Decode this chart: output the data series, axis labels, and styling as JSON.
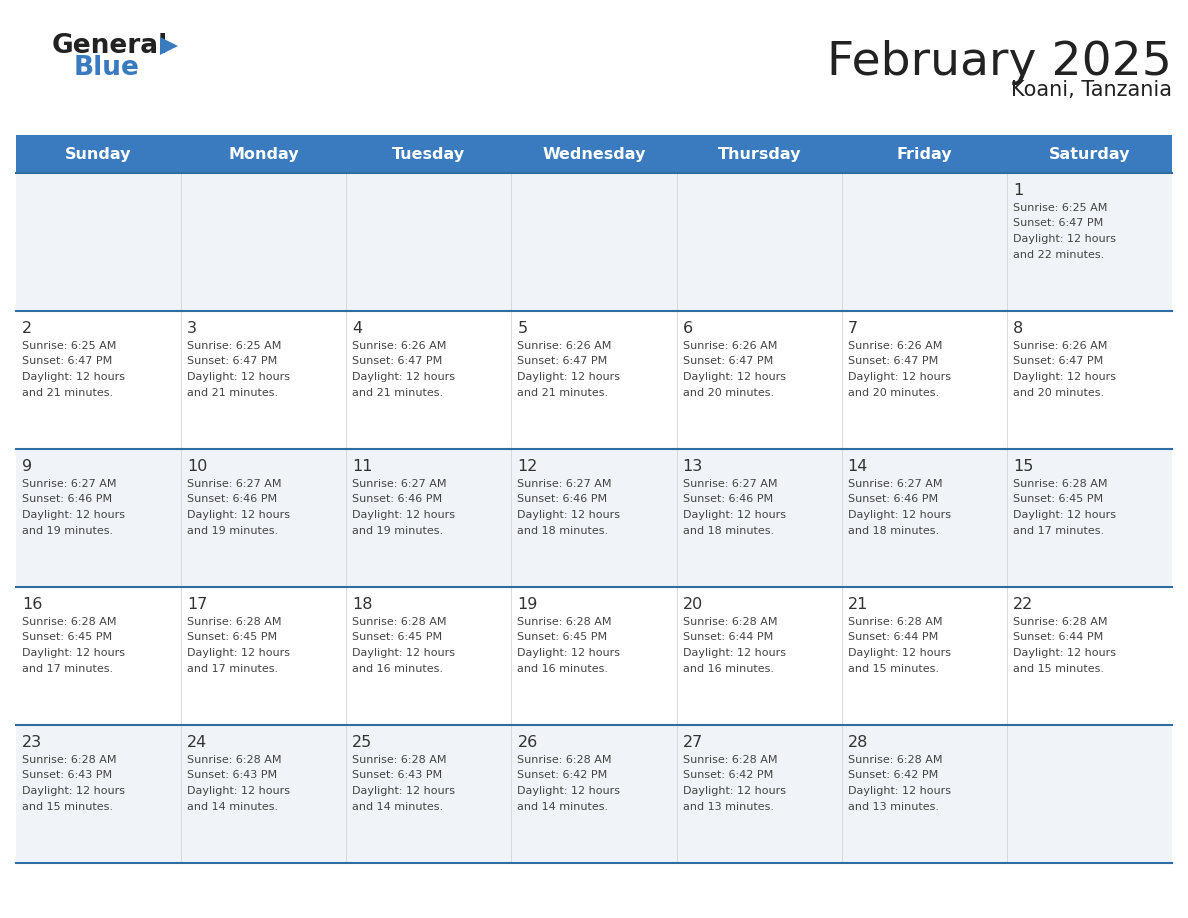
{
  "title": "February 2025",
  "subtitle": "Koani, Tanzania",
  "header_bg": "#3a7bbf",
  "header_text_color": "#ffffff",
  "day_headers": [
    "Sunday",
    "Monday",
    "Tuesday",
    "Wednesday",
    "Thursday",
    "Friday",
    "Saturday"
  ],
  "bg_color": "#ffffff",
  "cell_bg_odd": "#f0f4f8",
  "cell_bg_even": "#ffffff",
  "border_color": "#2e6da4",
  "text_color": "#333333",
  "title_color": "#222222",
  "calendar": [
    [
      null,
      null,
      null,
      null,
      null,
      null,
      {
        "day": 1,
        "sunrise": "6:25 AM",
        "sunset": "6:47 PM",
        "daylight": "12 hours and 22 minutes."
      }
    ],
    [
      {
        "day": 2,
        "sunrise": "6:25 AM",
        "sunset": "6:47 PM",
        "daylight": "12 hours and 21 minutes."
      },
      {
        "day": 3,
        "sunrise": "6:25 AM",
        "sunset": "6:47 PM",
        "daylight": "12 hours and 21 minutes."
      },
      {
        "day": 4,
        "sunrise": "6:26 AM",
        "sunset": "6:47 PM",
        "daylight": "12 hours and 21 minutes."
      },
      {
        "day": 5,
        "sunrise": "6:26 AM",
        "sunset": "6:47 PM",
        "daylight": "12 hours and 21 minutes."
      },
      {
        "day": 6,
        "sunrise": "6:26 AM",
        "sunset": "6:47 PM",
        "daylight": "12 hours and 20 minutes."
      },
      {
        "day": 7,
        "sunrise": "6:26 AM",
        "sunset": "6:47 PM",
        "daylight": "12 hours and 20 minutes."
      },
      {
        "day": 8,
        "sunrise": "6:26 AM",
        "sunset": "6:47 PM",
        "daylight": "12 hours and 20 minutes."
      }
    ],
    [
      {
        "day": 9,
        "sunrise": "6:27 AM",
        "sunset": "6:46 PM",
        "daylight": "12 hours and 19 minutes."
      },
      {
        "day": 10,
        "sunrise": "6:27 AM",
        "sunset": "6:46 PM",
        "daylight": "12 hours and 19 minutes."
      },
      {
        "day": 11,
        "sunrise": "6:27 AM",
        "sunset": "6:46 PM",
        "daylight": "12 hours and 19 minutes."
      },
      {
        "day": 12,
        "sunrise": "6:27 AM",
        "sunset": "6:46 PM",
        "daylight": "12 hours and 18 minutes."
      },
      {
        "day": 13,
        "sunrise": "6:27 AM",
        "sunset": "6:46 PM",
        "daylight": "12 hours and 18 minutes."
      },
      {
        "day": 14,
        "sunrise": "6:27 AM",
        "sunset": "6:46 PM",
        "daylight": "12 hours and 18 minutes."
      },
      {
        "day": 15,
        "sunrise": "6:28 AM",
        "sunset": "6:45 PM",
        "daylight": "12 hours and 17 minutes."
      }
    ],
    [
      {
        "day": 16,
        "sunrise": "6:28 AM",
        "sunset": "6:45 PM",
        "daylight": "12 hours and 17 minutes."
      },
      {
        "day": 17,
        "sunrise": "6:28 AM",
        "sunset": "6:45 PM",
        "daylight": "12 hours and 17 minutes."
      },
      {
        "day": 18,
        "sunrise": "6:28 AM",
        "sunset": "6:45 PM",
        "daylight": "12 hours and 16 minutes."
      },
      {
        "day": 19,
        "sunrise": "6:28 AM",
        "sunset": "6:45 PM",
        "daylight": "12 hours and 16 minutes."
      },
      {
        "day": 20,
        "sunrise": "6:28 AM",
        "sunset": "6:44 PM",
        "daylight": "12 hours and 16 minutes."
      },
      {
        "day": 21,
        "sunrise": "6:28 AM",
        "sunset": "6:44 PM",
        "daylight": "12 hours and 15 minutes."
      },
      {
        "day": 22,
        "sunrise": "6:28 AM",
        "sunset": "6:44 PM",
        "daylight": "12 hours and 15 minutes."
      }
    ],
    [
      {
        "day": 23,
        "sunrise": "6:28 AM",
        "sunset": "6:43 PM",
        "daylight": "12 hours and 15 minutes."
      },
      {
        "day": 24,
        "sunrise": "6:28 AM",
        "sunset": "6:43 PM",
        "daylight": "12 hours and 14 minutes."
      },
      {
        "day": 25,
        "sunrise": "6:28 AM",
        "sunset": "6:43 PM",
        "daylight": "12 hours and 14 minutes."
      },
      {
        "day": 26,
        "sunrise": "6:28 AM",
        "sunset": "6:42 PM",
        "daylight": "12 hours and 14 minutes."
      },
      {
        "day": 27,
        "sunrise": "6:28 AM",
        "sunset": "6:42 PM",
        "daylight": "12 hours and 13 minutes."
      },
      {
        "day": 28,
        "sunrise": "6:28 AM",
        "sunset": "6:42 PM",
        "daylight": "12 hours and 13 minutes."
      },
      null
    ]
  ],
  "logo_general_color": "#222222",
  "logo_blue_color": "#3a7bbf",
  "logo_triangle_color": "#3a7bbf"
}
